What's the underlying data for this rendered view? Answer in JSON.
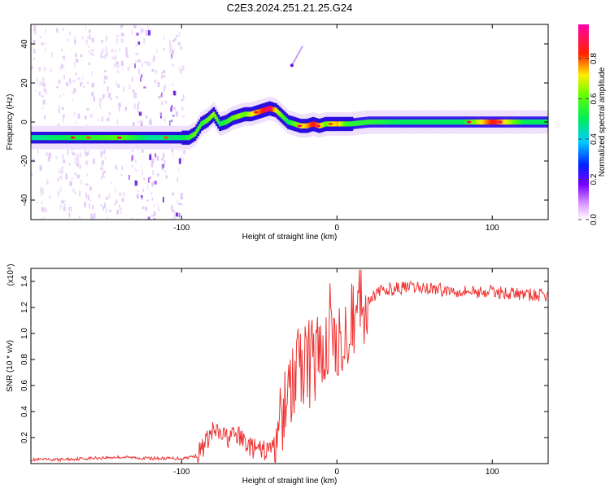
{
  "title": "C2E3.2024.251.21.25.G24",
  "colors": {
    "snr_line": "#ee3333",
    "ridge_low": "#3311ee",
    "ridge_mid": "#22ee44",
    "ridge_high": "#ee2222",
    "scatter": "#aa66ee"
  },
  "chart_data": [
    {
      "type": "heatmap",
      "xlabel": "Height of straight line (km)",
      "ylabel": "Frequency (Hz)",
      "xlim": [
        -197,
        136
      ],
      "ylim": [
        -50,
        50
      ],
      "xticks": [
        -100,
        0,
        100
      ],
      "yticks": [
        -40,
        -20,
        0,
        20,
        40
      ],
      "grid": false,
      "colorbar": {
        "label": "Normalized spectral amplitude",
        "range": [
          0,
          0.97
        ],
        "ticks": [
          0.0,
          0.2,
          0.4,
          0.6,
          0.8
        ],
        "colormap": "rainbow (white-violet-blue-cyan-green-yellow-red-magenta)"
      },
      "ridge": {
        "x": [
          -197,
          -180,
          -160,
          -140,
          -120,
          -100,
          -96,
          -92,
          -88,
          -84,
          -80,
          -76,
          -72,
          -68,
          -64,
          -60,
          -56,
          -52,
          -48,
          -44,
          -40,
          -36,
          -32,
          -28,
          -24,
          -20,
          -16,
          -12,
          -8,
          -4,
          0,
          4,
          8,
          20,
          40,
          60,
          80,
          100,
          120,
          136
        ],
        "freq": [
          -8,
          -8,
          -8,
          -8,
          -8,
          -8,
          -8,
          -6,
          -1,
          1,
          4,
          -1,
          0,
          2,
          3,
          4,
          4,
          5,
          6,
          7,
          6,
          3,
          0,
          -1,
          -2,
          -2,
          -1,
          -2,
          -1,
          -1,
          -1,
          -1,
          -1,
          0,
          0,
          0,
          0,
          0,
          0,
          0
        ],
        "amplitude": [
          0.45,
          0.5,
          0.55,
          0.6,
          0.45,
          0.5,
          0.55,
          0.6,
          0.55,
          0.6,
          0.65,
          0.5,
          0.55,
          0.6,
          0.65,
          0.6,
          0.7,
          0.75,
          0.85,
          0.9,
          0.7,
          0.6,
          0.5,
          0.6,
          0.7,
          0.75,
          0.85,
          0.75,
          0.6,
          0.7,
          0.75,
          0.6,
          0.55,
          0.55,
          0.5,
          0.5,
          0.5,
          0.85,
          0.5,
          0.5
        ]
      },
      "spur": {
        "x": [
          -29,
          -22
        ],
        "freq": [
          29,
          39
        ]
      }
    },
    {
      "type": "line",
      "xlabel": "Height of straight line (km)",
      "ylabel": "SNR (10 * v/v)",
      "yunit": "(x10⁴)",
      "xlim": [
        -197,
        136
      ],
      "ylim": [
        0,
        1.5
      ],
      "xticks": [
        -100,
        0,
        100
      ],
      "yticks": [
        0.2,
        0.4,
        0.6,
        0.8,
        1.0,
        1.2,
        1.4
      ],
      "grid": false,
      "series": [
        {
          "x": [
            -197,
            -180,
            -160,
            -140,
            -120,
            -100,
            -90,
            -85,
            -80,
            -75,
            -70,
            -65,
            -60,
            -55,
            -50,
            -45,
            -40,
            -35,
            -30,
            -25,
            -20,
            -15,
            -10,
            -5,
            0,
            5,
            10,
            15,
            20,
            25,
            30,
            40,
            50,
            60,
            70,
            80,
            90,
            100,
            110,
            120,
            136
          ],
          "values": [
            0.03,
            0.03,
            0.04,
            0.05,
            0.04,
            0.04,
            0.06,
            0.15,
            0.25,
            0.22,
            0.2,
            0.22,
            0.18,
            0.12,
            0.1,
            0.1,
            0.15,
            0.3,
            0.55,
            0.7,
            0.75,
            0.8,
            0.85,
            0.9,
            1.0,
            1.08,
            1.15,
            1.22,
            1.27,
            1.3,
            1.33,
            1.35,
            1.35,
            1.35,
            1.33,
            1.33,
            1.32,
            1.32,
            1.31,
            1.3,
            1.29
          ]
        }
      ]
    }
  ]
}
